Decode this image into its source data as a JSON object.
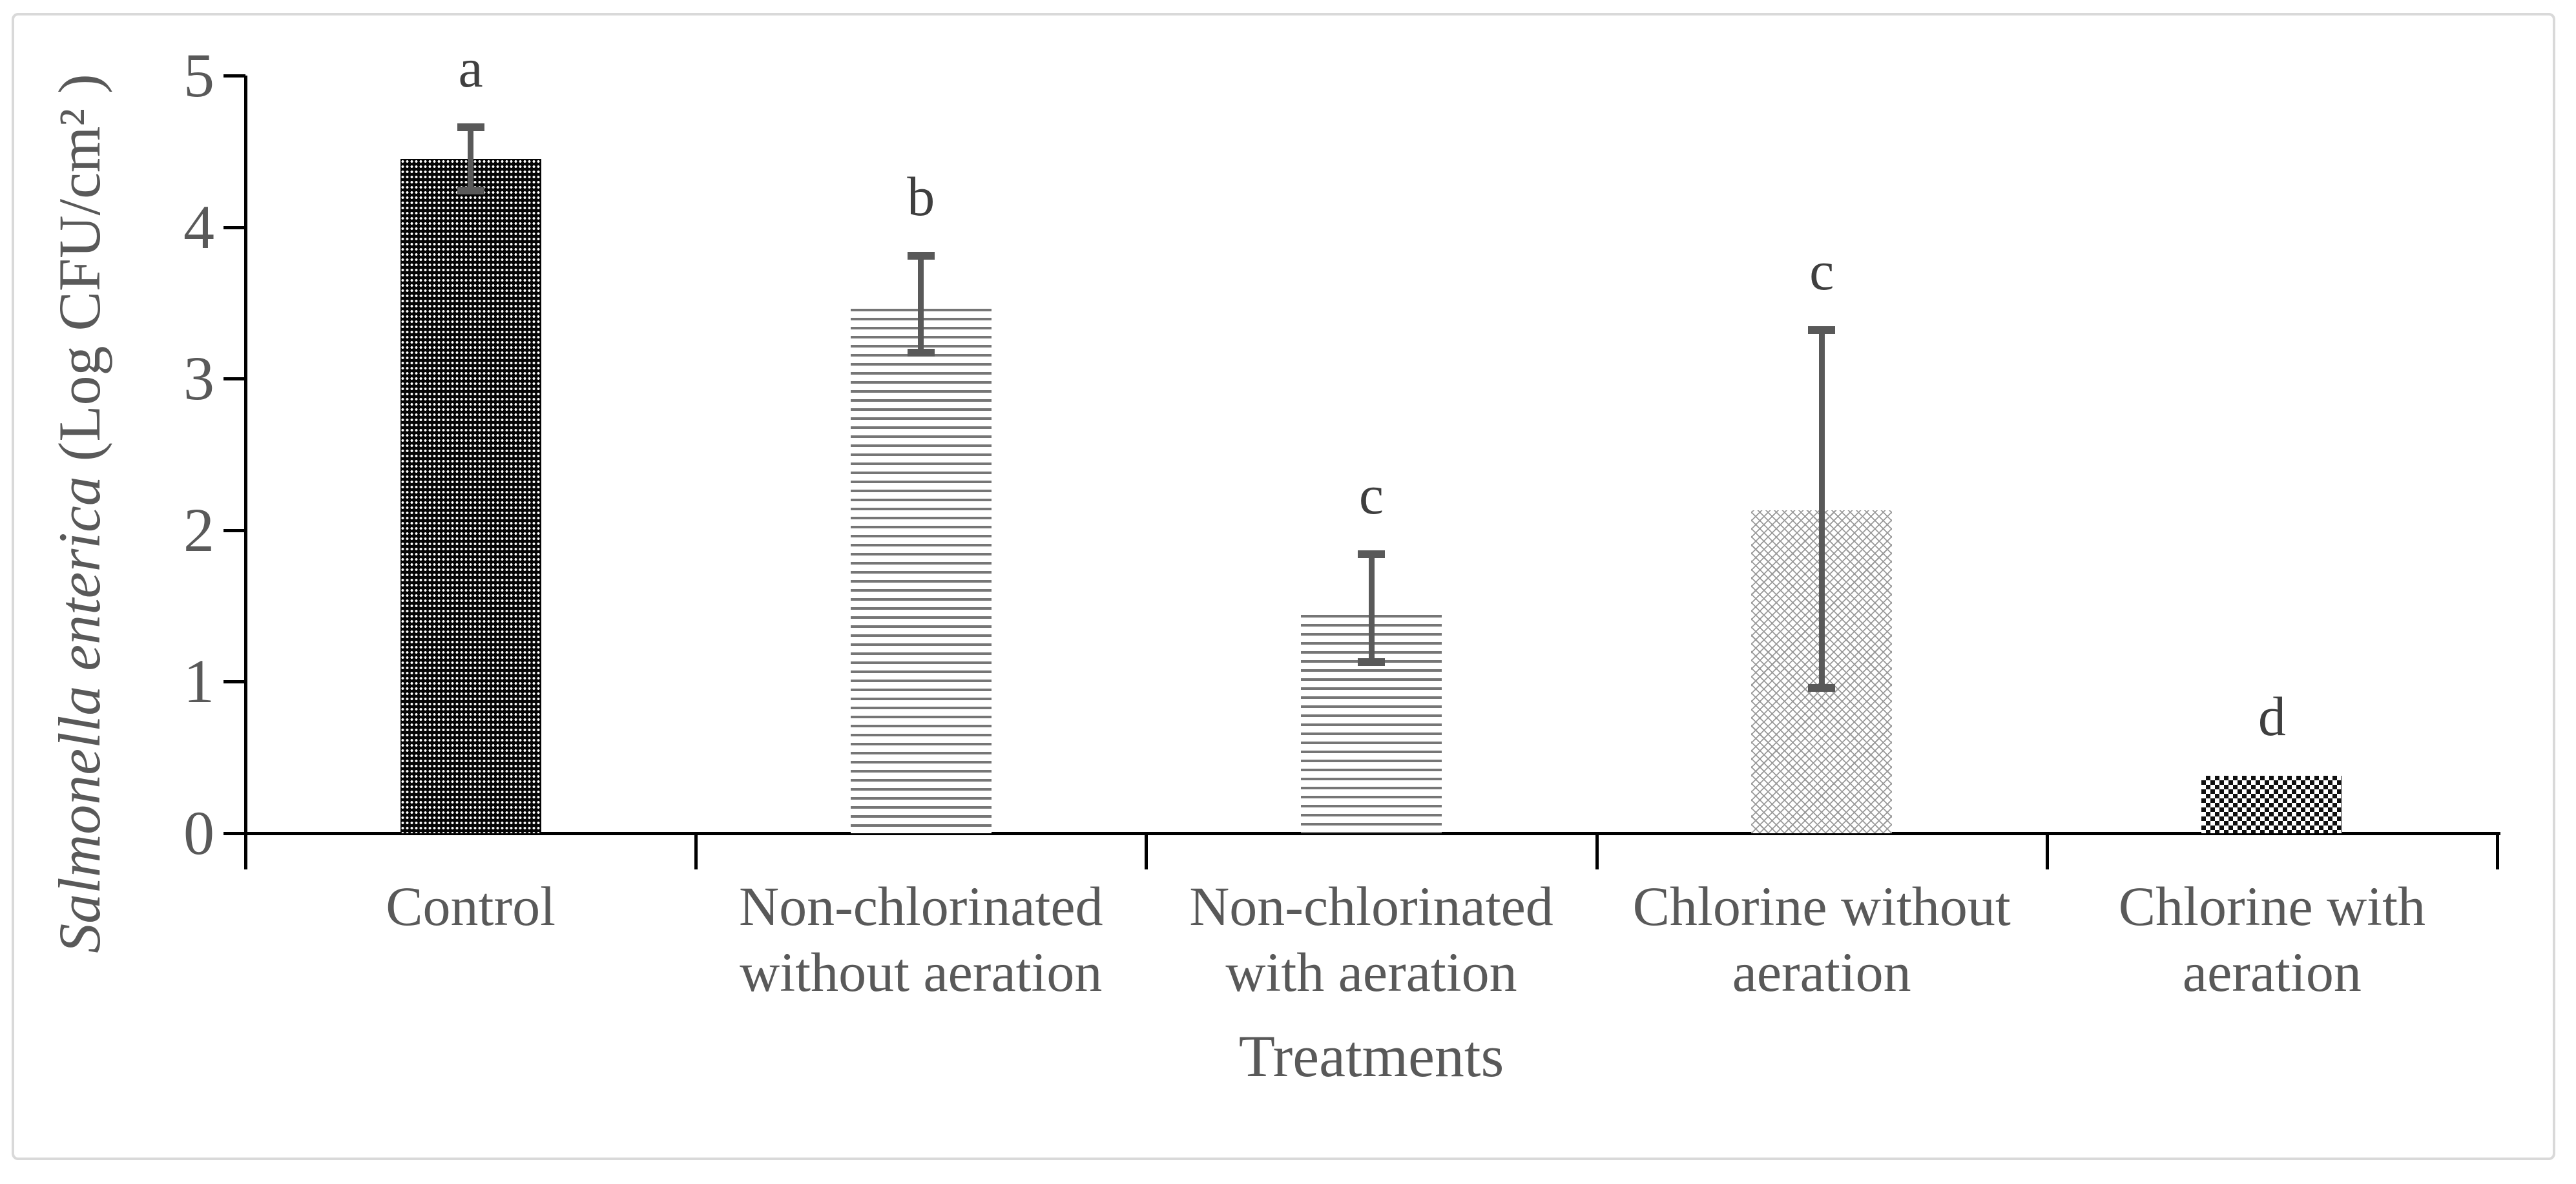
{
  "figure": {
    "background": "#ffffff",
    "border_color": "#d9d9d9"
  },
  "chart_data": {
    "type": "bar",
    "title": "",
    "xlabel": "Treatments",
    "ylabel_italic": "Salmonella enterica",
    "ylabel_rest": " (Log CFU/cm² )",
    "ylim": [
      0,
      5
    ],
    "yticks": [
      0,
      1,
      2,
      3,
      4,
      5
    ],
    "grid": false,
    "legend": "none",
    "categories": [
      "Control",
      "Non-chlorinated without aeration",
      "Non-chlorinated with aeration",
      "Chlorine without aeration",
      "Chlorine with aeration"
    ],
    "bars": [
      {
        "label_lines": [
          "Control"
        ],
        "value": 4.45,
        "err_top": 4.66,
        "err_bottom": 4.24,
        "letter": "a",
        "pattern": "dense-dotted-dark"
      },
      {
        "label_lines": [
          "Non-chlorinated",
          "without aeration"
        ],
        "value": 3.46,
        "err_top": 3.81,
        "err_bottom": 3.17,
        "letter": "b",
        "pattern": "horizontal-lines"
      },
      {
        "label_lines": [
          "Non-chlorinated",
          "with aeration"
        ],
        "value": 1.44,
        "err_top": 1.84,
        "err_bottom": 1.13,
        "letter": "c",
        "pattern": "horizontal-lines"
      },
      {
        "label_lines": [
          "Chlorine without",
          "aeration"
        ],
        "value": 2.13,
        "err_top": 3.32,
        "err_bottom": 0.96,
        "letter": "c",
        "pattern": "diamond-lattice-light"
      },
      {
        "label_lines": [
          "Chlorine with",
          "aeration"
        ],
        "value": 0.38,
        "err_top": null,
        "err_bottom": null,
        "letter": "d",
        "pattern": "checkerboard-dark"
      }
    ],
    "colors": {
      "axis": "#000000",
      "tick_label": "#595959",
      "category_label": "#595959",
      "axis_title": "#595959",
      "significance_letter": "#3f3f3f",
      "error_bar": "#595959",
      "horizontal_line_pattern": "#767676",
      "diamond_lattice_pattern": "#9a9a9a"
    }
  }
}
